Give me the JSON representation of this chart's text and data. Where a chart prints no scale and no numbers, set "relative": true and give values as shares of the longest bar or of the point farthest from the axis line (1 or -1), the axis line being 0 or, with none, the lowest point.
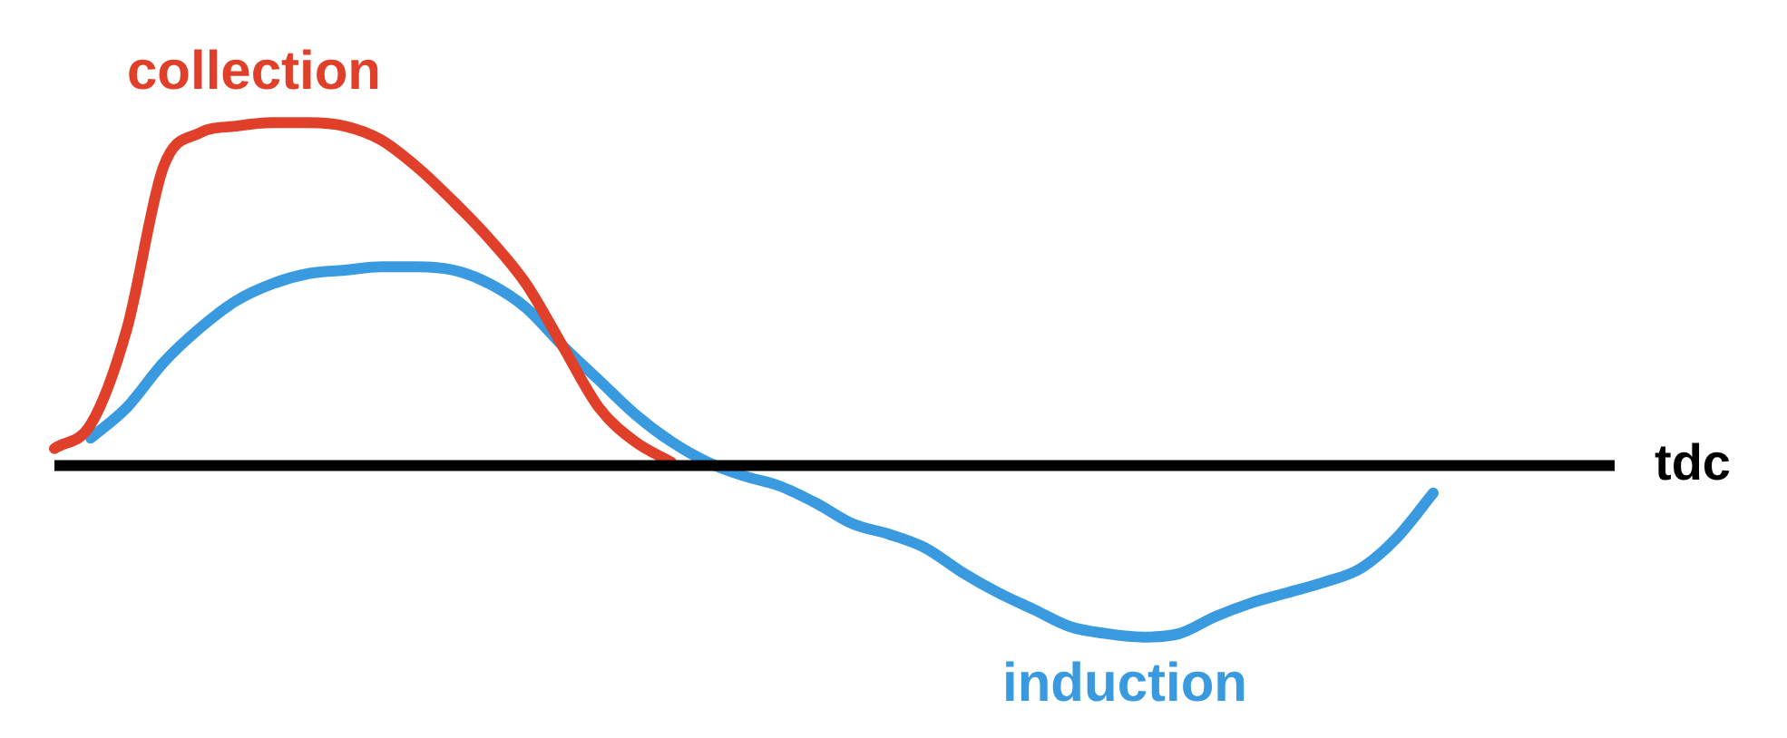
{
  "chart_data": {
    "type": "line",
    "relative": true,
    "xlabel": "tdc",
    "legend": false,
    "marker": "none",
    "categories": [
      null,
      null,
      null,
      null,
      null,
      null,
      null,
      null,
      null,
      null,
      null,
      null,
      null,
      null,
      null,
      null,
      null,
      null,
      null,
      null,
      null,
      null,
      null,
      null,
      null,
      null,
      null,
      null,
      null,
      null,
      null,
      null,
      null,
      null,
      null,
      null,
      null,
      null,
      null,
      null,
      null,
      null,
      null,
      null
    ],
    "series": [
      {
        "name": "collection",
        "color": "#e0402a",
        "values": [
          0.05,
          0.12,
          0.4,
          0.87,
          0.97,
          0.99,
          1,
          1,
          0.99,
          0.95,
          0.87,
          0.77,
          0.66,
          0.53,
          0.35,
          0.17,
          0.07,
          0.01,
          null,
          null,
          null,
          null,
          null,
          null,
          null,
          null,
          null,
          null,
          null,
          null,
          null,
          null,
          null,
          null,
          null,
          null,
          null,
          null,
          null,
          null,
          null,
          null,
          null,
          null
        ]
      },
      {
        "name": "induction",
        "color": "#3a9ae0",
        "values": [
          null,
          0.08,
          0.17,
          0.3,
          0.4,
          0.48,
          0.53,
          0.56,
          0.57,
          0.58,
          0.58,
          0.57,
          0.53,
          0.46,
          0.35,
          0.25,
          0.15,
          0.07,
          0.01,
          -0.03,
          -0.06,
          -0.11,
          -0.17,
          -0.2,
          -0.24,
          -0.31,
          -0.37,
          -0.42,
          -0.47,
          -0.49,
          -0.5,
          -0.49,
          -0.44,
          -0.4,
          -0.37,
          -0.34,
          -0.3,
          -0.21,
          -0.08,
          null,
          null,
          null,
          null,
          null
        ]
      }
    ]
  }
}
